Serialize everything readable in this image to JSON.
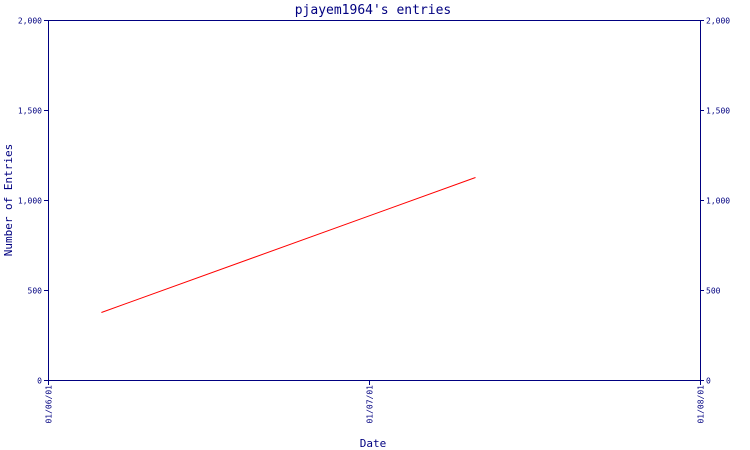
{
  "chart_data": {
    "type": "line",
    "title": "pjayem1964's entries",
    "xlabel": "Date",
    "ylabel": "Number of Entries",
    "x_ticks": [
      "01/06/01",
      "01/07/01",
      "01/08/01"
    ],
    "x_range": [
      "01/06/01",
      "01/08/01"
    ],
    "ylim": [
      0,
      2000
    ],
    "y_ticks": [
      0,
      500,
      1000,
      1500,
      2000
    ],
    "y_tick_labels": [
      "0",
      "500",
      "1,000",
      "1,500",
      "2,000"
    ],
    "grid": false,
    "series": [
      {
        "color": "#ff0000",
        "points": [
          {
            "x": "2001-06-06",
            "y": 375
          },
          {
            "x": "2001-07-11",
            "y": 1125
          }
        ]
      }
    ]
  }
}
